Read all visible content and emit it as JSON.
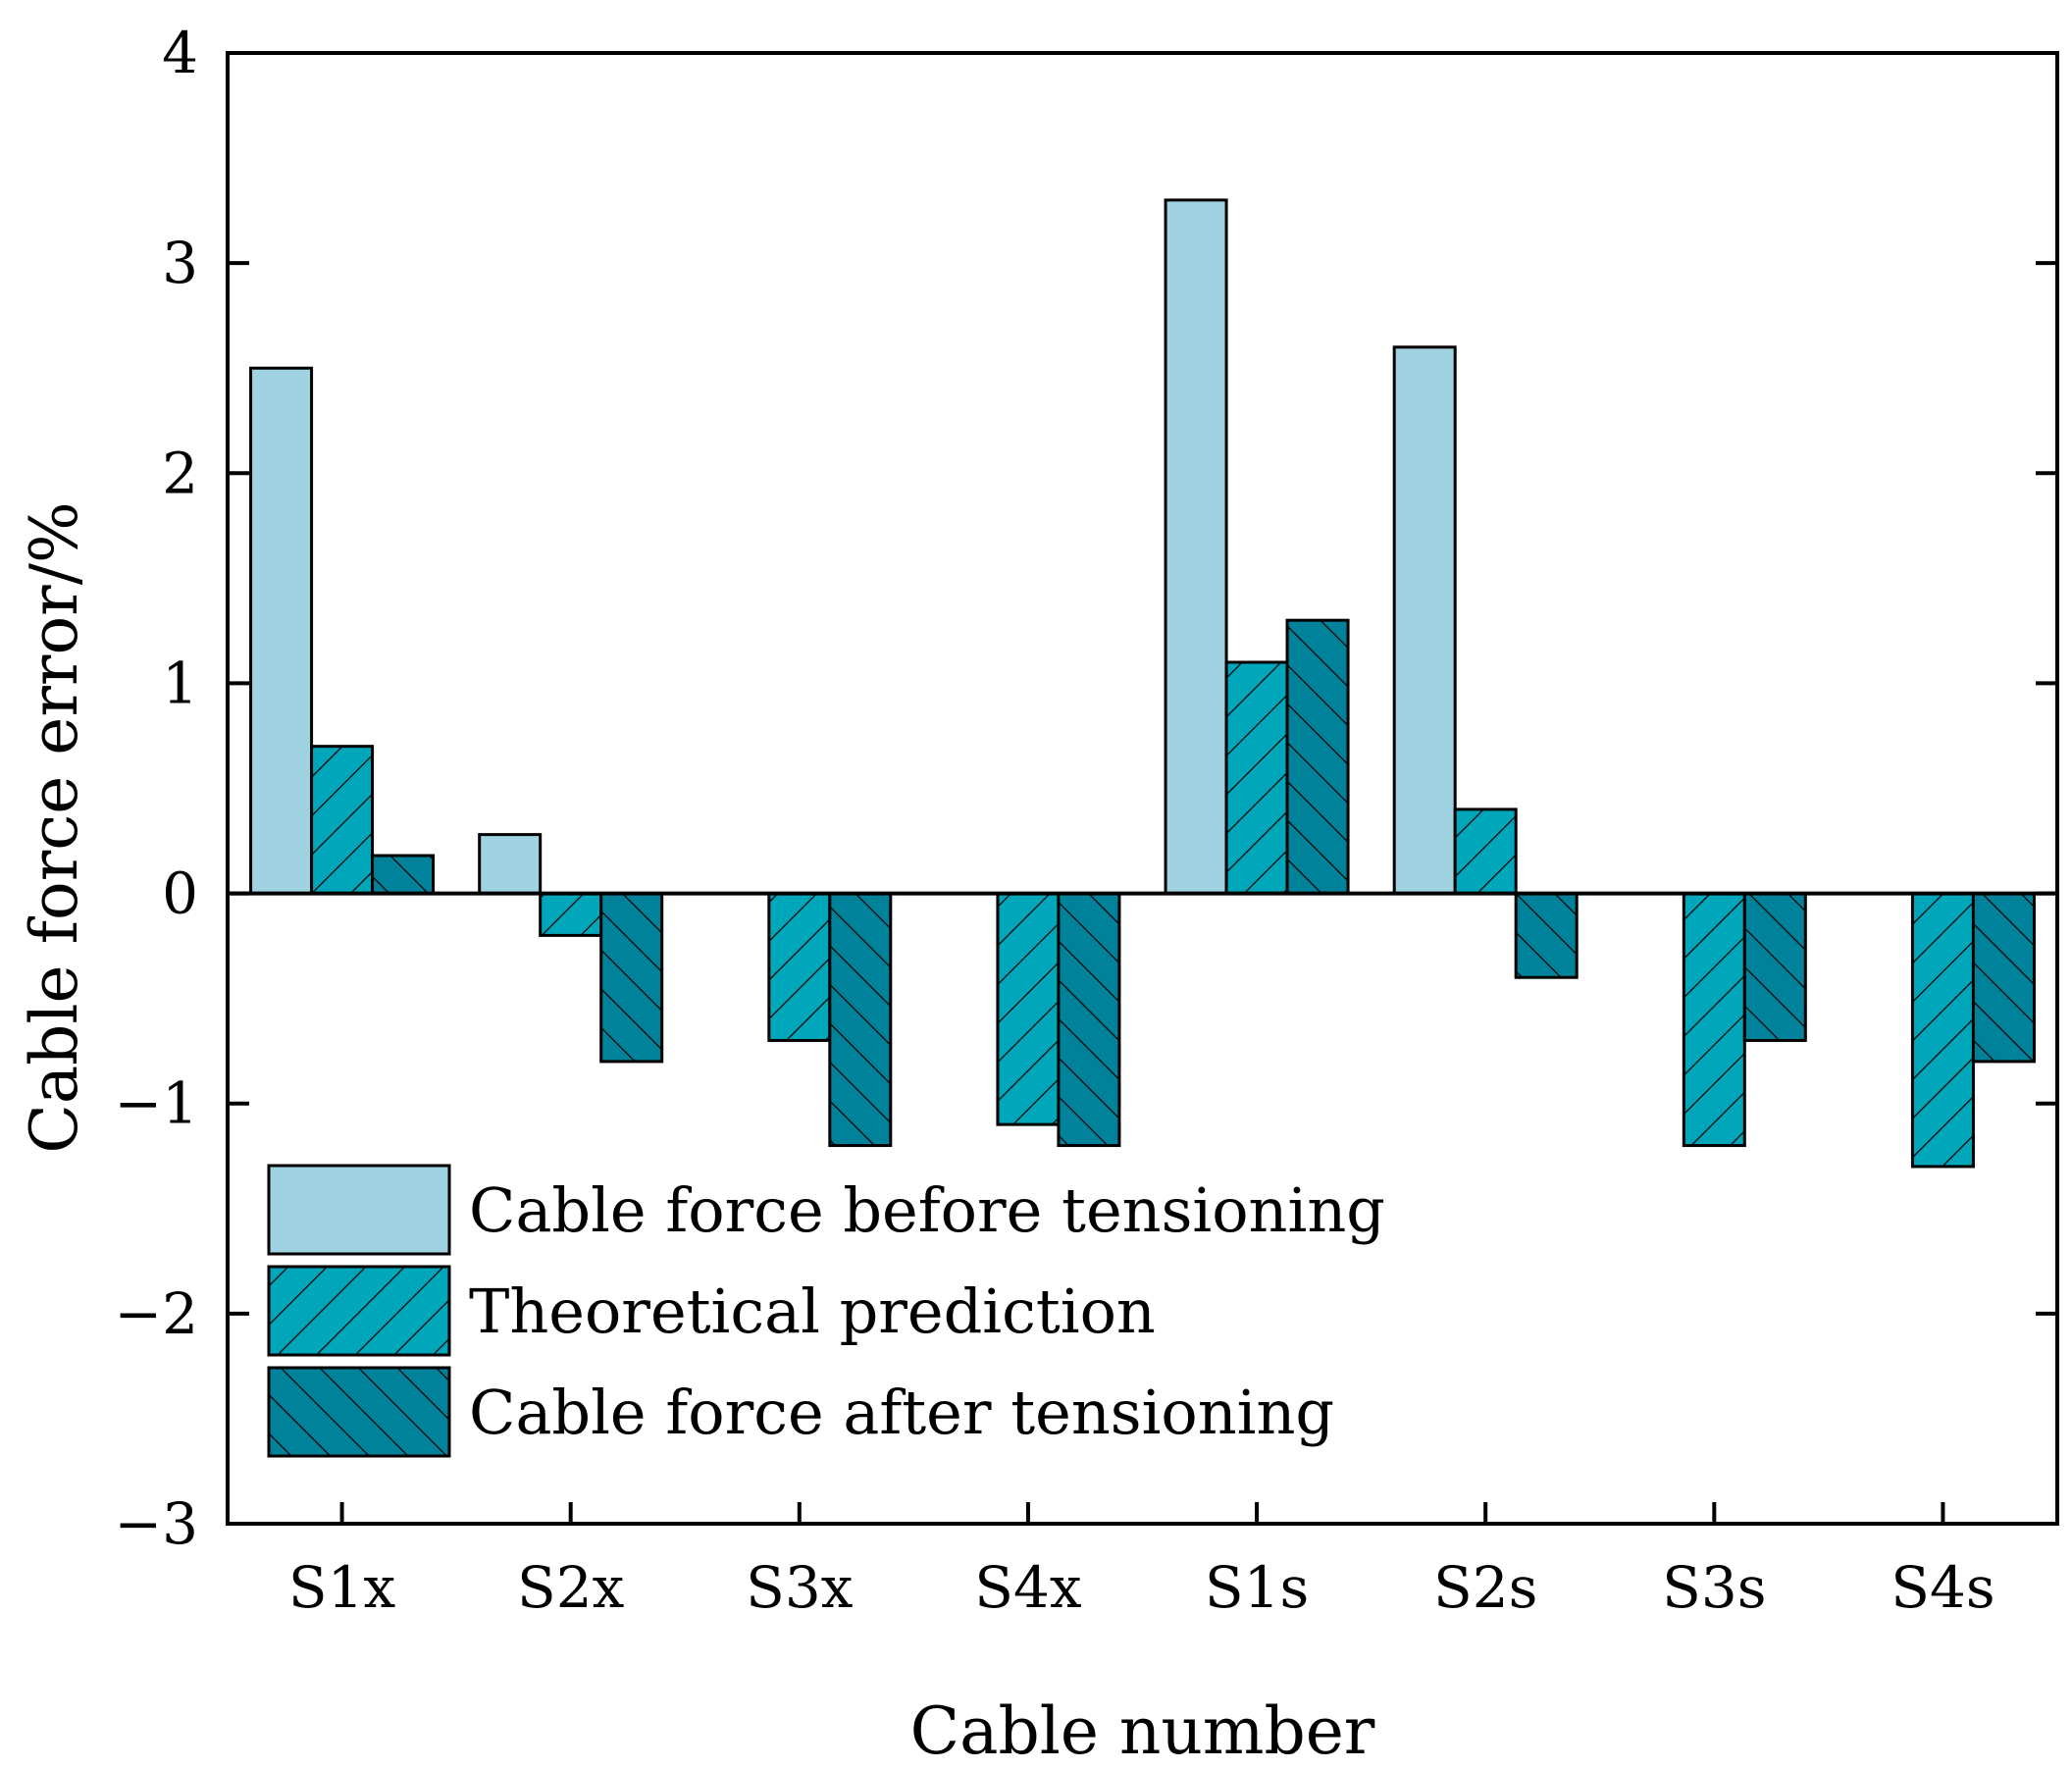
{
  "chart_data": {
    "type": "bar",
    "title": "",
    "xlabel": "Cable number",
    "ylabel": "Cable force error/%",
    "ylim": [
      -3,
      4
    ],
    "yticks": [
      "−3",
      "−2",
      "−1",
      "0",
      "1",
      "2",
      "3",
      "4"
    ],
    "categories": [
      "S1x",
      "S2x",
      "S3x",
      "S4x",
      "S1s",
      "S2s",
      "S3s",
      "S4s"
    ],
    "series": [
      {
        "name": "Cable force before tensioning",
        "values": [
          2.5,
          0.28,
          0,
          0,
          3.3,
          2.6,
          0,
          0
        ],
        "color": "#a0d3e2",
        "hatch": "none"
      },
      {
        "name": "Theoretical prediction",
        "values": [
          0.7,
          -0.2,
          -0.7,
          -1.1,
          1.1,
          0.4,
          -1.2,
          -1.3
        ],
        "color": "#00a6b9",
        "hatch": "forward"
      },
      {
        "name": "Cable force after tensioning",
        "values": [
          0.18,
          -0.8,
          -1.2,
          -1.2,
          1.3,
          -0.4,
          -0.7,
          -0.8
        ],
        "color": "#00839a",
        "hatch": "backward"
      }
    ],
    "legend": "bottom-left",
    "grid": false
  }
}
